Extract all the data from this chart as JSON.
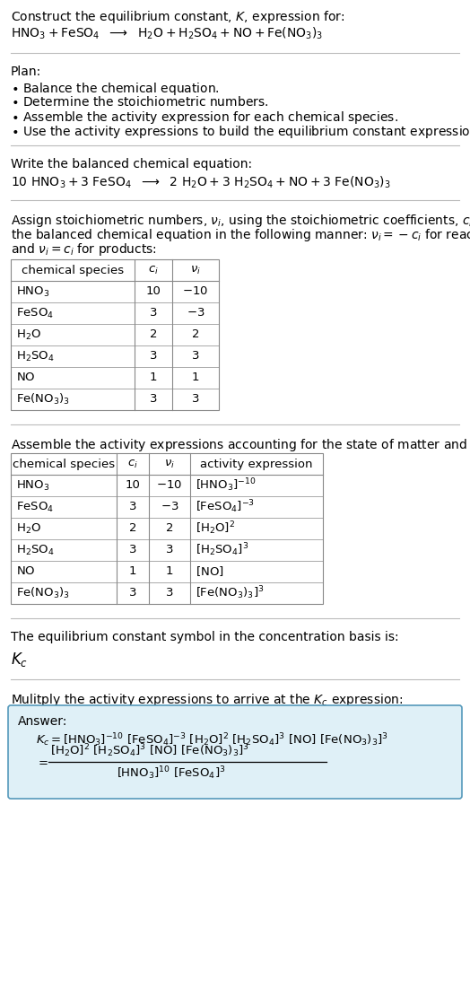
{
  "bg_color": "#ffffff",
  "text_color": "#000000",
  "table_border_color": "#888888",
  "answer_bg_color": "#dff0f7",
  "answer_border_color": "#5599bb",
  "font_size": 10.0,
  "small_font": 9.5
}
